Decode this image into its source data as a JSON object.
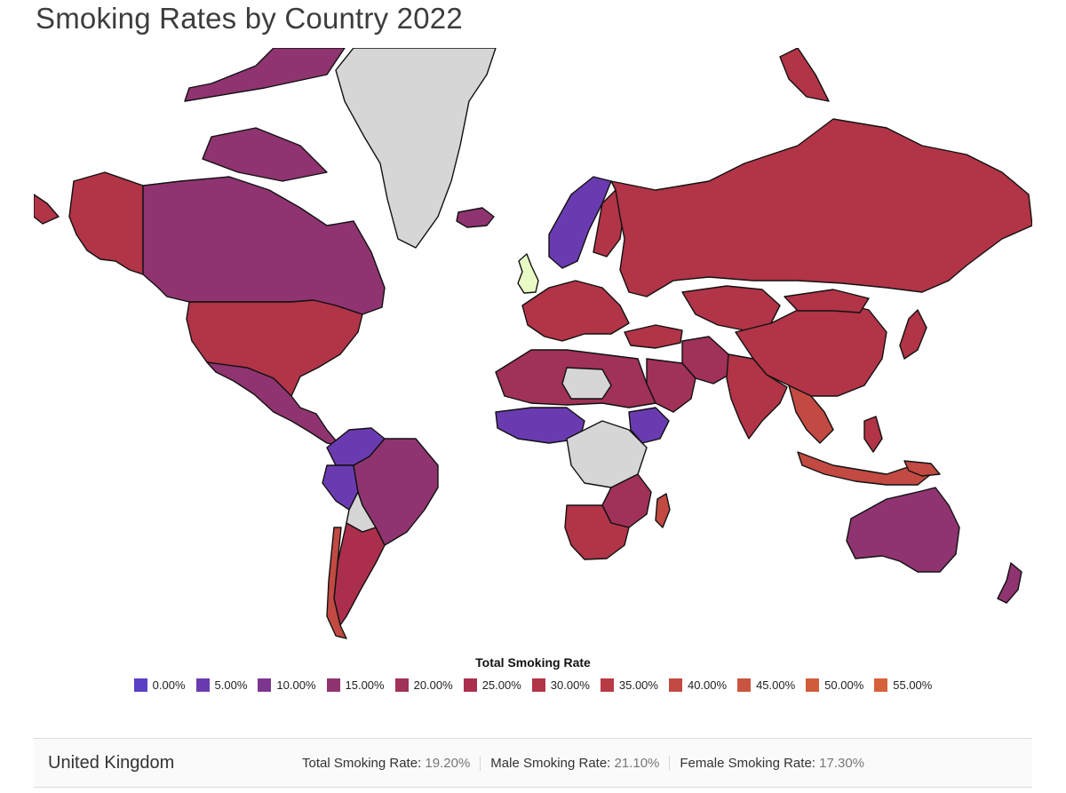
{
  "title": "Smoking Rates by Country 2022",
  "legend": {
    "title": "Total Smoking Rate",
    "items": [
      {
        "label": "0.00%",
        "color": "#5b3fc4"
      },
      {
        "label": "5.00%",
        "color": "#6a3bb0"
      },
      {
        "label": "10.00%",
        "color": "#7d3690"
      },
      {
        "label": "15.00%",
        "color": "#8f3470"
      },
      {
        "label": "20.00%",
        "color": "#a03159"
      },
      {
        "label": "25.00%",
        "color": "#ab2f4c"
      },
      {
        "label": "30.00%",
        "color": "#b13447"
      },
      {
        "label": "35.00%",
        "color": "#b83a45"
      },
      {
        "label": "40.00%",
        "color": "#c24a42"
      },
      {
        "label": "45.00%",
        "color": "#c95540"
      },
      {
        "label": "50.00%",
        "color": "#cf5c3a"
      },
      {
        "label": "55.00%",
        "color": "#d6603a"
      }
    ]
  },
  "colors": {
    "no_data": "#d6d6d6",
    "uk_highlight": "#e9fbc4",
    "russia": "#b13447",
    "usa": "#b13447",
    "canada": "#8f3470",
    "greenland": "#d6d6d6",
    "china": "#b13447",
    "australia": "#8f3470",
    "brazil": "#8f3470",
    "argentina": "#ab2f4c",
    "chile": "#c24a42",
    "scandinavia": "#6a3bb0",
    "india": "#b13447",
    "africa_high": "#a03159",
    "africa_low": "#6a3bb0"
  },
  "selected_country": {
    "name": "United Kingdom",
    "total_label": "Total Smoking Rate:",
    "total_value": "19.20%",
    "male_label": "Male Smoking Rate:",
    "male_value": "21.10%",
    "female_label": "Female Smoking Rate:",
    "female_value": "17.30%"
  }
}
